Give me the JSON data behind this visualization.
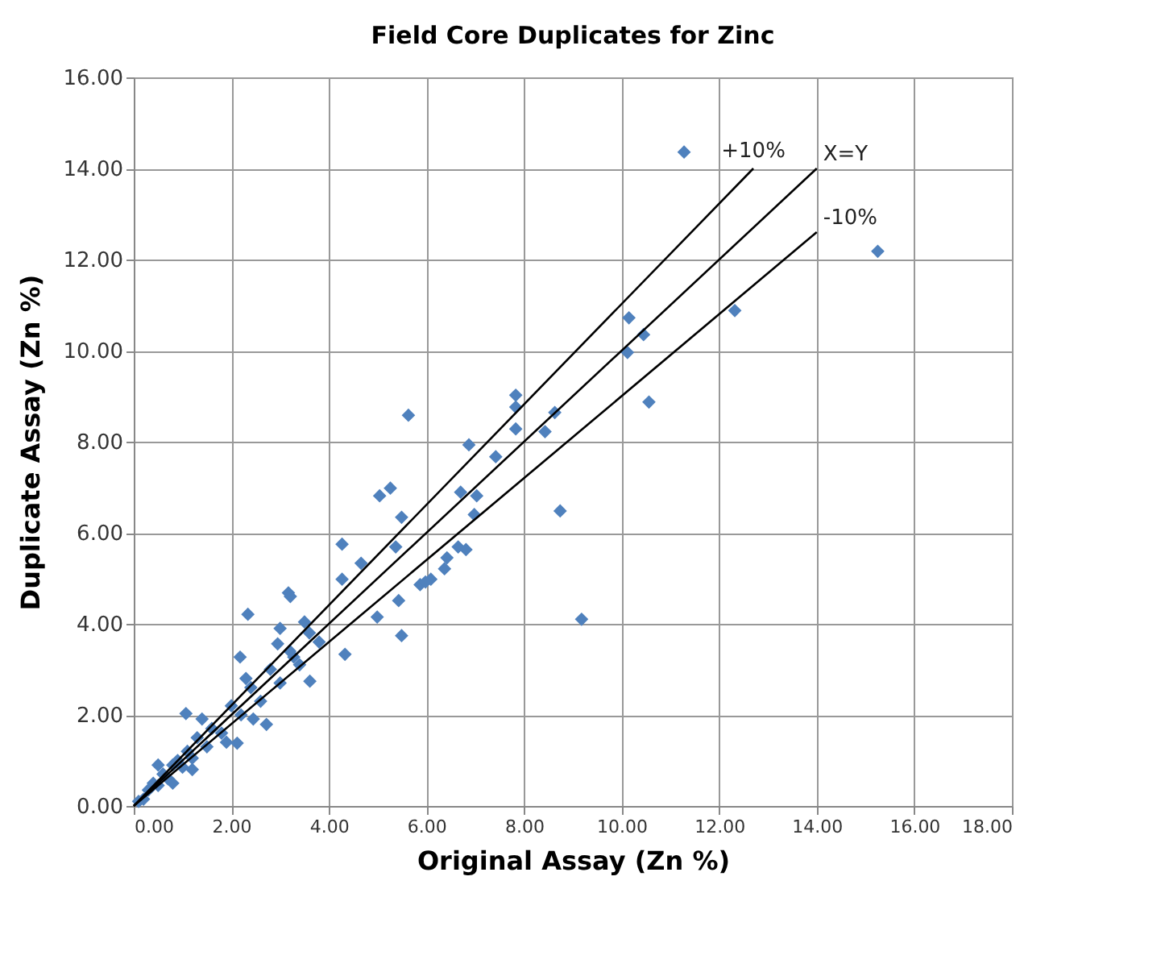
{
  "chart_data": {
    "type": "scatter",
    "title": "Field Core Duplicates for Zinc",
    "xlabel": "Original Assay (Zn %)",
    "ylabel": "Duplicate  Assay (Zn %)",
    "xlim": [
      0,
      18
    ],
    "ylim": [
      0,
      16
    ],
    "xticks": [
      {
        "value": 0,
        "label": "0.00"
      },
      {
        "value": 2,
        "label": "2.00"
      },
      {
        "value": 4,
        "label": "4.00"
      },
      {
        "value": 6,
        "label": "6.00"
      },
      {
        "value": 8,
        "label": "8.00"
      },
      {
        "value": 10,
        "label": "10.00"
      },
      {
        "value": 12,
        "label": "12.00"
      },
      {
        "value": 14,
        "label": "14.00"
      },
      {
        "value": 16,
        "label": "16.00"
      },
      {
        "value": 18,
        "label": "18.00"
      }
    ],
    "yticks": [
      {
        "value": 0,
        "label": "0.00"
      },
      {
        "value": 2,
        "label": "2.00"
      },
      {
        "value": 4,
        "label": "4.00"
      },
      {
        "value": 6,
        "label": "6.00"
      },
      {
        "value": 8,
        "label": "8.00"
      },
      {
        "value": 10,
        "label": "10.00"
      },
      {
        "value": 12,
        "label": "12.00"
      },
      {
        "value": 14,
        "label": "14.00"
      },
      {
        "value": 16,
        "label": "16.00"
      }
    ],
    "grid": true,
    "legend": false,
    "series": [
      {
        "color": "#4f81bd",
        "marker": "diamond",
        "x": [
          15.25,
          11.28,
          12.32,
          10.15,
          10.45,
          10.12,
          10.56,
          5.63,
          7.83,
          7.83,
          7.83,
          8.63,
          8.43,
          6.87,
          7.42,
          5.26,
          6.7,
          7.03,
          6.98,
          8.74,
          5.49,
          5.37,
          6.65,
          6.81,
          6.42,
          6.37,
          6.09,
          5.87,
          5.43,
          5.49,
          9.18,
          4.27,
          4.27,
          4.66,
          5.04,
          5.98,
          4.99,
          4.33,
          3.17,
          2.34,
          3.61,
          3.28,
          2.18,
          2.72,
          2.45,
          2.12,
          1.07,
          1.4,
          2.95,
          3.5,
          3.21,
          0.1,
          0.2,
          0.3,
          0.4,
          0.5,
          0.6,
          0.7,
          0.8,
          0.9,
          1.0,
          1.1,
          1.2,
          1.3,
          1.5,
          1.6,
          1.8,
          2.0,
          2.2,
          2.4,
          2.6,
          2.8,
          3.0,
          3.2,
          3.4,
          3.6,
          3.8,
          0.5,
          0.8,
          1.2,
          1.9,
          2.3,
          3.0
        ],
        "values": [
          12.18,
          14.36,
          10.88,
          10.72,
          10.35,
          9.96,
          8.87,
          8.58,
          9.02,
          8.76,
          8.28,
          8.64,
          8.22,
          7.93,
          7.67,
          6.98,
          6.89,
          6.81,
          6.4,
          6.48,
          6.34,
          5.69,
          5.69,
          5.63,
          5.45,
          5.21,
          4.98,
          4.86,
          4.51,
          3.74,
          4.1,
          5.75,
          4.98,
          5.33,
          6.81,
          4.92,
          4.15,
          3.33,
          4.68,
          4.21,
          2.74,
          3.27,
          3.27,
          1.79,
          1.91,
          1.38,
          2.03,
          1.91,
          3.56,
          4.04,
          4.6,
          0.1,
          0.15,
          0.35,
          0.5,
          0.45,
          0.7,
          0.6,
          0.9,
          1.0,
          0.85,
          1.2,
          1.05,
          1.5,
          1.3,
          1.7,
          1.6,
          2.2,
          2.0,
          2.6,
          2.3,
          3.0,
          2.7,
          3.4,
          3.1,
          3.8,
          3.6,
          0.9,
          0.5,
          0.8,
          1.4,
          2.8,
          3.9
        ]
      },
      {
        "type": "line",
        "name": "+10%",
        "color": "#000000",
        "x": [
          0,
          12.7
        ],
        "values": [
          0,
          14
        ]
      },
      {
        "type": "line",
        "name": "X=Y",
        "color": "#000000",
        "x": [
          0,
          14
        ],
        "values": [
          0,
          14
        ]
      },
      {
        "type": "line",
        "name": "-10%",
        "color": "#000000",
        "x": [
          0,
          14
        ],
        "values": [
          0,
          12.6
        ]
      }
    ]
  }
}
